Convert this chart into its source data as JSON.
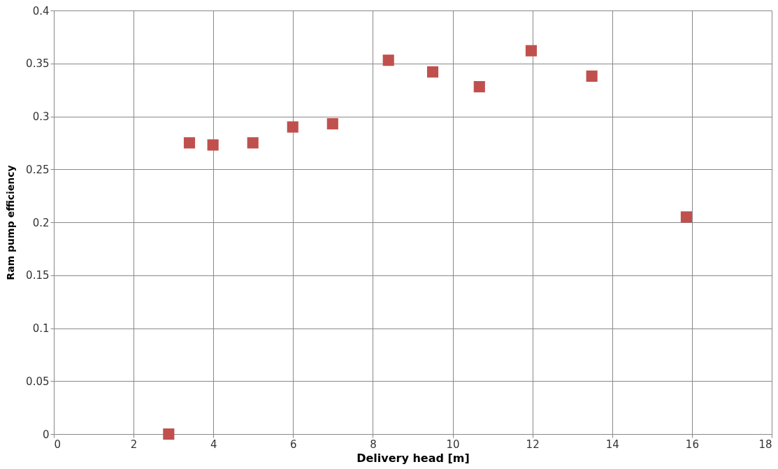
{
  "chart_data": {
    "type": "scatter",
    "xlabel": "Delivery head [m]",
    "ylabel": "Ram pump efficiency",
    "x": [
      2.88,
      3.4,
      3.99,
      4.99,
      5.99,
      6.99,
      8.39,
      9.5,
      10.67,
      11.97,
      13.49,
      15.86
    ],
    "series": [
      {
        "color": "#c0504d",
        "values": [
          0.0,
          0.275,
          0.273,
          0.275,
          0.29,
          0.293,
          0.353,
          0.342,
          0.328,
          0.362,
          0.338,
          0.205
        ]
      }
    ],
    "xlim": [
      0,
      18
    ],
    "xticks": [
      0,
      2,
      4,
      6,
      8,
      10,
      12,
      14,
      16,
      18
    ],
    "ylim": [
      0,
      0.4
    ],
    "yticks": [
      0,
      0.05,
      0.1,
      0.15,
      0.2,
      0.25,
      0.3,
      0.35,
      0.4
    ],
    "grid": true,
    "marker": "square"
  }
}
